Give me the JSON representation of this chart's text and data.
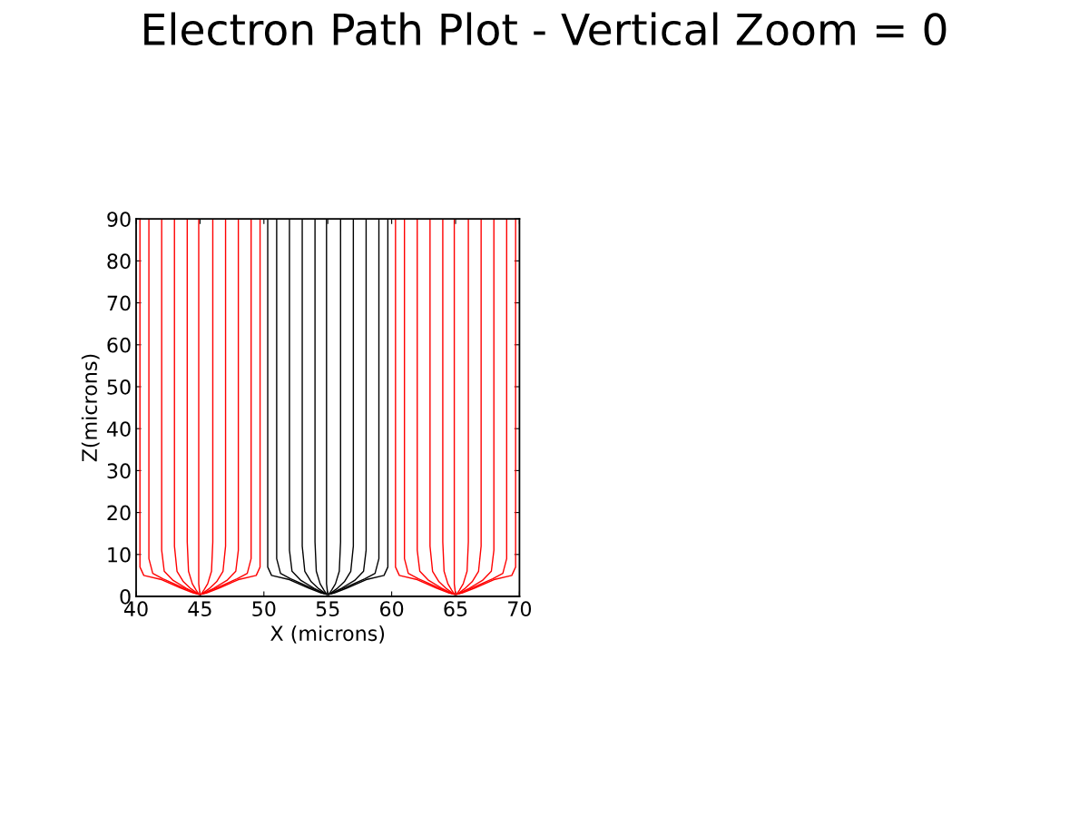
{
  "chart_data": {
    "type": "line",
    "title": "Electron Path Plot - Vertical Zoom = 0",
    "xlabel": "X (microns)",
    "ylabel": "Z(microns)",
    "xlim": [
      40,
      70
    ],
    "ylim": [
      0,
      90
    ],
    "xticks": [
      40,
      45,
      50,
      55,
      60,
      65,
      70
    ],
    "yticks": [
      0,
      10,
      20,
      30,
      40,
      50,
      60,
      70,
      80,
      90
    ],
    "grid": false,
    "line_style": "solid",
    "marker": "none",
    "series": [
      {
        "color": "#ff0000",
        "x": [
          40.3,
          40.3,
          40.6,
          42,
          43.5,
          44.5,
          44.9
        ],
        "values": [
          90,
          7,
          5,
          4,
          2,
          0.8,
          0.5
        ]
      },
      {
        "color": "#ff0000",
        "x": [
          41,
          41,
          41.3,
          42.1,
          43.5,
          44.5,
          44.9
        ],
        "values": [
          90,
          9,
          5.5,
          4.2,
          2.3,
          1,
          0.5
        ]
      },
      {
        "color": "#ff0000",
        "x": [
          42,
          42,
          42.2,
          42.9,
          43.9,
          44.7
        ],
        "values": [
          90,
          11,
          6,
          3.8,
          2,
          0.7
        ]
      },
      {
        "color": "#ff0000",
        "x": [
          43,
          43,
          43.2,
          43.7,
          44.3,
          44.8
        ],
        "values": [
          90,
          12,
          6,
          3.5,
          1.8,
          0.7
        ]
      },
      {
        "color": "#ff0000",
        "x": [
          44,
          44,
          44.1,
          44.4,
          44.7,
          44.9
        ],
        "values": [
          90,
          13,
          6,
          3,
          1.5,
          0.6
        ]
      },
      {
        "color": "#ff0000",
        "x": [
          44.9,
          44.9,
          45
        ],
        "values": [
          90,
          3,
          0.5
        ]
      },
      {
        "color": "#ff0000",
        "x": [
          46,
          46,
          45.9,
          45.6,
          45.3,
          45.1
        ],
        "values": [
          90,
          13,
          6,
          3,
          1.5,
          0.6
        ]
      },
      {
        "color": "#ff0000",
        "x": [
          47,
          47,
          46.8,
          46.3,
          45.7,
          45.2
        ],
        "values": [
          90,
          12,
          6,
          3.5,
          1.8,
          0.7
        ]
      },
      {
        "color": "#ff0000",
        "x": [
          48,
          48,
          47.8,
          47.1,
          46.1,
          45.3
        ],
        "values": [
          90,
          11,
          6,
          3.8,
          2,
          0.7
        ]
      },
      {
        "color": "#ff0000",
        "x": [
          49,
          49,
          48.7,
          47.9,
          46.5,
          45.5,
          45.1
        ],
        "values": [
          90,
          9,
          5.5,
          4.2,
          2.3,
          1,
          0.5
        ]
      },
      {
        "color": "#ff0000",
        "x": [
          49.7,
          49.7,
          49.4,
          48,
          46.5,
          45.5,
          45.1
        ],
        "values": [
          90,
          7,
          5,
          4,
          2,
          0.8,
          0.5
        ]
      },
      {
        "color": "#000000",
        "x": [
          50.3,
          50.3,
          50.6,
          52,
          53.5,
          54.5,
          54.9
        ],
        "values": [
          90,
          7,
          5,
          4,
          2,
          0.8,
          0.5
        ]
      },
      {
        "color": "#000000",
        "x": [
          51,
          51,
          51.3,
          52.1,
          53.5,
          54.5,
          54.9
        ],
        "values": [
          90,
          9,
          5.5,
          4.2,
          2.3,
          1,
          0.5
        ]
      },
      {
        "color": "#000000",
        "x": [
          52,
          52,
          52.2,
          52.9,
          53.9,
          54.7
        ],
        "values": [
          90,
          11,
          6,
          3.8,
          2,
          0.7
        ]
      },
      {
        "color": "#000000",
        "x": [
          53,
          53,
          53.2,
          53.7,
          54.3,
          54.8
        ],
        "values": [
          90,
          12,
          6,
          3.5,
          1.8,
          0.7
        ]
      },
      {
        "color": "#000000",
        "x": [
          54,
          54,
          54.1,
          54.4,
          54.7,
          54.9
        ],
        "values": [
          90,
          13,
          6,
          3,
          1.5,
          0.6
        ]
      },
      {
        "color": "#000000",
        "x": [
          54.9,
          54.9,
          55
        ],
        "values": [
          90,
          3,
          0.5
        ]
      },
      {
        "color": "#000000",
        "x": [
          56,
          56,
          55.9,
          55.6,
          55.3,
          55.1
        ],
        "values": [
          90,
          13,
          6,
          3,
          1.5,
          0.6
        ]
      },
      {
        "color": "#000000",
        "x": [
          57,
          57,
          56.8,
          56.3,
          55.7,
          55.2
        ],
        "values": [
          90,
          12,
          6,
          3.5,
          1.8,
          0.7
        ]
      },
      {
        "color": "#000000",
        "x": [
          58,
          58,
          57.8,
          57.1,
          56.1,
          55.3
        ],
        "values": [
          90,
          11,
          6,
          3.8,
          2,
          0.7
        ]
      },
      {
        "color": "#000000",
        "x": [
          59,
          59,
          58.7,
          57.9,
          56.5,
          55.5,
          55.1
        ],
        "values": [
          90,
          9,
          5.5,
          4.2,
          2.3,
          1,
          0.5
        ]
      },
      {
        "color": "#000000",
        "x": [
          59.7,
          59.7,
          59.4,
          58,
          56.5,
          55.5,
          55.1
        ],
        "values": [
          90,
          7,
          5,
          4,
          2,
          0.8,
          0.5
        ]
      },
      {
        "color": "#ff0000",
        "x": [
          60.3,
          60.3,
          60.6,
          62,
          63.5,
          64.5,
          64.9
        ],
        "values": [
          90,
          7,
          5,
          4,
          2,
          0.8,
          0.5
        ]
      },
      {
        "color": "#ff0000",
        "x": [
          61,
          61,
          61.3,
          62.1,
          63.5,
          64.5,
          64.9
        ],
        "values": [
          90,
          9,
          5.5,
          4.2,
          2.3,
          1,
          0.5
        ]
      },
      {
        "color": "#ff0000",
        "x": [
          62,
          62,
          62.2,
          62.9,
          63.9,
          64.7
        ],
        "values": [
          90,
          11,
          6,
          3.8,
          2,
          0.7
        ]
      },
      {
        "color": "#ff0000",
        "x": [
          63,
          63,
          63.2,
          63.7,
          64.3,
          64.8
        ],
        "values": [
          90,
          12,
          6,
          3.5,
          1.8,
          0.7
        ]
      },
      {
        "color": "#ff0000",
        "x": [
          64,
          64,
          64.1,
          64.4,
          64.7,
          64.9
        ],
        "values": [
          90,
          13,
          6,
          3,
          1.5,
          0.6
        ]
      },
      {
        "color": "#ff0000",
        "x": [
          64.9,
          64.9,
          65
        ],
        "values": [
          90,
          3,
          0.5
        ]
      },
      {
        "color": "#ff0000",
        "x": [
          66,
          66,
          65.9,
          65.6,
          65.3,
          65.1
        ],
        "values": [
          90,
          13,
          6,
          3,
          1.5,
          0.6
        ]
      },
      {
        "color": "#ff0000",
        "x": [
          67,
          67,
          66.8,
          66.3,
          65.7,
          65.2
        ],
        "values": [
          90,
          12,
          6,
          3.5,
          1.8,
          0.7
        ]
      },
      {
        "color": "#ff0000",
        "x": [
          68,
          68,
          67.8,
          67.1,
          66.1,
          65.3
        ],
        "values": [
          90,
          11,
          6,
          3.8,
          2,
          0.7
        ]
      },
      {
        "color": "#ff0000",
        "x": [
          69,
          69,
          68.7,
          67.9,
          66.5,
          65.5,
          65.1
        ],
        "values": [
          90,
          9,
          5.5,
          4.2,
          2.3,
          1,
          0.5
        ]
      },
      {
        "color": "#ff0000",
        "x": [
          69.7,
          69.7,
          69.4,
          68,
          66.5,
          65.5,
          65.1
        ],
        "values": [
          90,
          7,
          5,
          4,
          2,
          0.8,
          0.5
        ]
      }
    ]
  }
}
